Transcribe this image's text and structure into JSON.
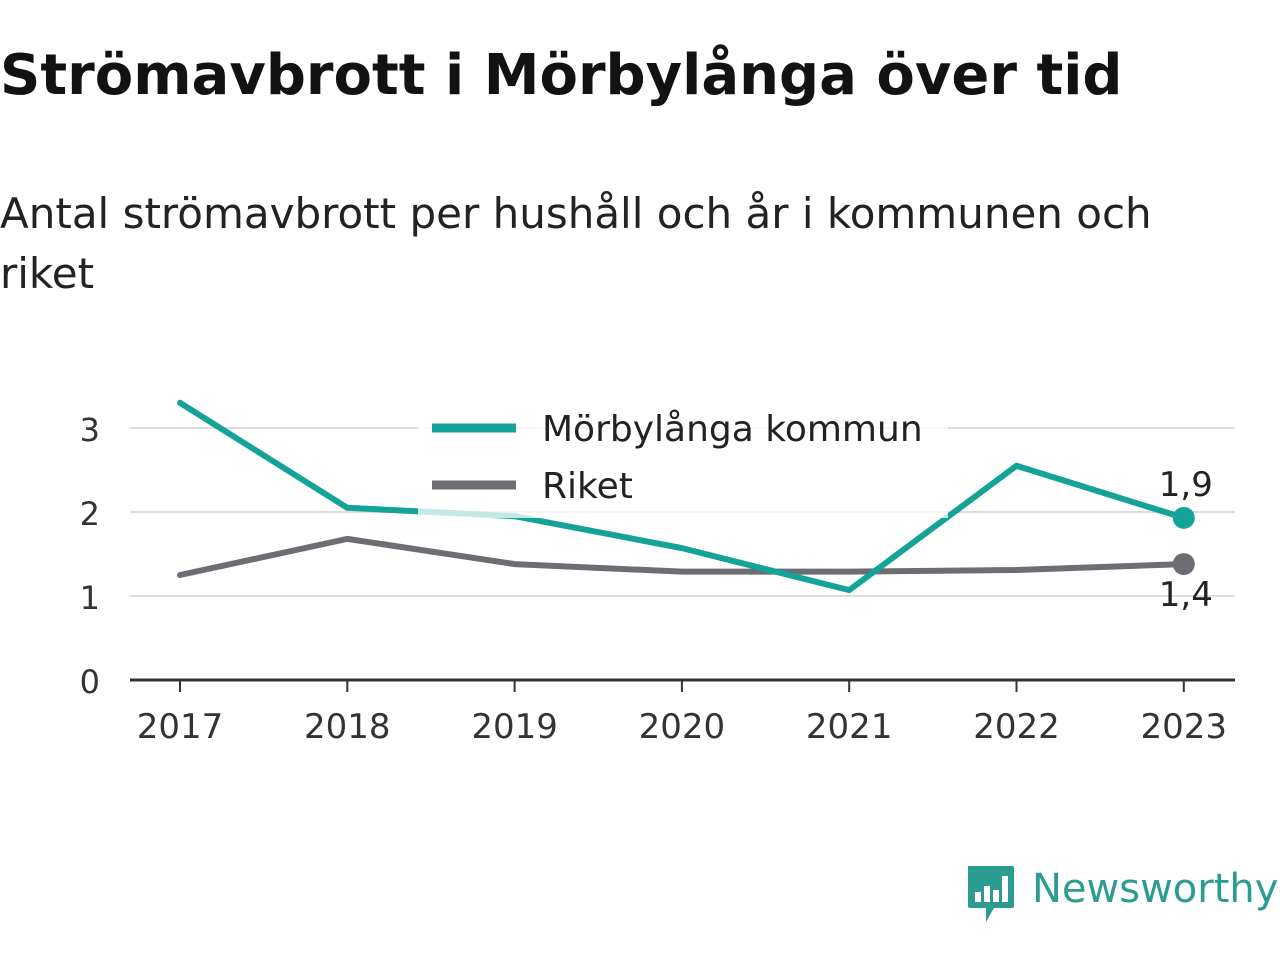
{
  "header": {
    "title": "Strömavbrott i Mörbylånga över tid",
    "subtitle": "Antal strömavbrott per hushåll och år i kommunen och riket"
  },
  "chart_data": {
    "type": "line",
    "title": "Strömavbrott i Mörbylånga över tid",
    "subtitle": "Antal strömavbrott per hushåll och år i kommunen och riket",
    "xlabel": "",
    "ylabel": "",
    "x": [
      "2017",
      "2018",
      "2019",
      "2020",
      "2021",
      "2022",
      "2023"
    ],
    "ylim": [
      0,
      3.2
    ],
    "yticks": [
      0,
      1,
      2,
      3
    ],
    "ytick_labels": [
      "0",
      "1",
      "2",
      "3"
    ],
    "grid": true,
    "legend": "top-center",
    "series": [
      {
        "name": "Mörbylånga kommun",
        "color": "#14a398",
        "values": [
          3.3,
          2.05,
          1.95,
          1.57,
          1.07,
          2.55,
          1.93
        ],
        "end_label": "1,9"
      },
      {
        "name": "Riket",
        "color": "#6e6d74",
        "values": [
          1.25,
          1.68,
          1.38,
          1.29,
          1.29,
          1.31,
          1.38
        ],
        "end_label": "1,4"
      }
    ]
  },
  "branding": {
    "name": "Newsworthy",
    "logo_icon": "newsworthy-bar-chart-icon",
    "color": "#2c9c91"
  }
}
